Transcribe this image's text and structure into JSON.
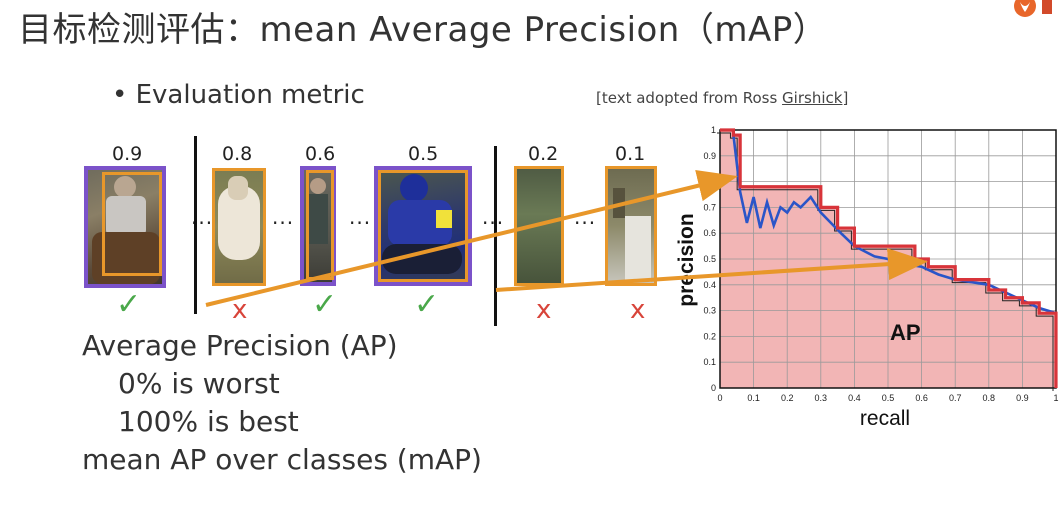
{
  "title": "目标检测评估：mean Average Precision（mAP）",
  "logo_icon": "flame-logo-icon",
  "bullet": "Evaluation metric",
  "credit": {
    "prefix": "[text adopted from Ross ",
    "name": "Girshick",
    "suffix": "]"
  },
  "detections": [
    {
      "score": "0.9",
      "correct": true,
      "result": "✓"
    },
    {
      "score": "0.8",
      "correct": false,
      "result": "x"
    },
    {
      "score": "0.6",
      "correct": true,
      "result": "✓"
    },
    {
      "score": "0.5",
      "correct": true,
      "result": "✓"
    },
    {
      "score": "0.2",
      "correct": false,
      "result": "x"
    },
    {
      "score": "0.1",
      "correct": false,
      "result": "x"
    }
  ],
  "ellipsis": "...",
  "ap_text": {
    "heading": "Average Precision (AP)",
    "worst": "0%  is worst",
    "best": "100%  is best",
    "mean": "mean AP over classes (mAP)"
  },
  "colors": {
    "gt_box": "#7b52c9",
    "det_box": "#e8972a",
    "arrow": "#e8972a",
    "pr_red": "#d8343a",
    "pr_blue": "#2a55c8",
    "area_fill": "#f2b5b5"
  },
  "chart_data": {
    "type": "line",
    "xlabel": "recall",
    "ylabel": "precision",
    "area_label": "AP",
    "xlim": [
      0,
      1
    ],
    "ylim": [
      0,
      1
    ],
    "x_ticks": [
      "0",
      "0.1",
      "0.2",
      "0.3",
      "0.4",
      "0.5",
      "0.6",
      "0.7",
      "0.8",
      "0.9",
      "1"
    ],
    "y_ticks": [
      "0",
      "0.1",
      "0.2",
      "0.3",
      "0.4",
      "0.5",
      "0.6",
      "0.7",
      "0.8",
      "0.9",
      "1"
    ],
    "grid": true,
    "series": [
      {
        "role": "interpolated",
        "color": "#d8343a",
        "x": [
          0.0,
          0.04,
          0.04,
          0.06,
          0.06,
          0.3,
          0.3,
          0.35,
          0.35,
          0.4,
          0.4,
          0.58,
          0.58,
          0.62,
          0.62,
          0.7,
          0.7,
          0.8,
          0.8,
          0.85,
          0.85,
          0.9,
          0.9,
          0.95,
          0.95,
          1.0,
          1.0
        ],
        "y": [
          1.0,
          1.0,
          0.98,
          0.98,
          0.78,
          0.78,
          0.7,
          0.7,
          0.62,
          0.62,
          0.55,
          0.55,
          0.5,
          0.5,
          0.47,
          0.47,
          0.42,
          0.42,
          0.38,
          0.38,
          0.35,
          0.35,
          0.33,
          0.33,
          0.29,
          0.29,
          0.0
        ]
      },
      {
        "role": "raw",
        "color": "#2a55c8",
        "x": [
          0.04,
          0.06,
          0.08,
          0.1,
          0.12,
          0.14,
          0.16,
          0.18,
          0.2,
          0.22,
          0.24,
          0.27,
          0.3,
          0.33,
          0.36,
          0.4,
          0.43,
          0.46,
          0.5,
          0.55,
          0.6,
          0.65,
          0.7,
          0.75,
          0.8,
          0.85,
          0.9,
          0.95,
          1.0
        ],
        "y": [
          0.98,
          0.76,
          0.64,
          0.74,
          0.62,
          0.72,
          0.63,
          0.7,
          0.68,
          0.72,
          0.7,
          0.74,
          0.68,
          0.64,
          0.6,
          0.55,
          0.53,
          0.51,
          0.5,
          0.48,
          0.47,
          0.44,
          0.42,
          0.41,
          0.4,
          0.37,
          0.34,
          0.31,
          0.29
        ]
      }
    ]
  }
}
